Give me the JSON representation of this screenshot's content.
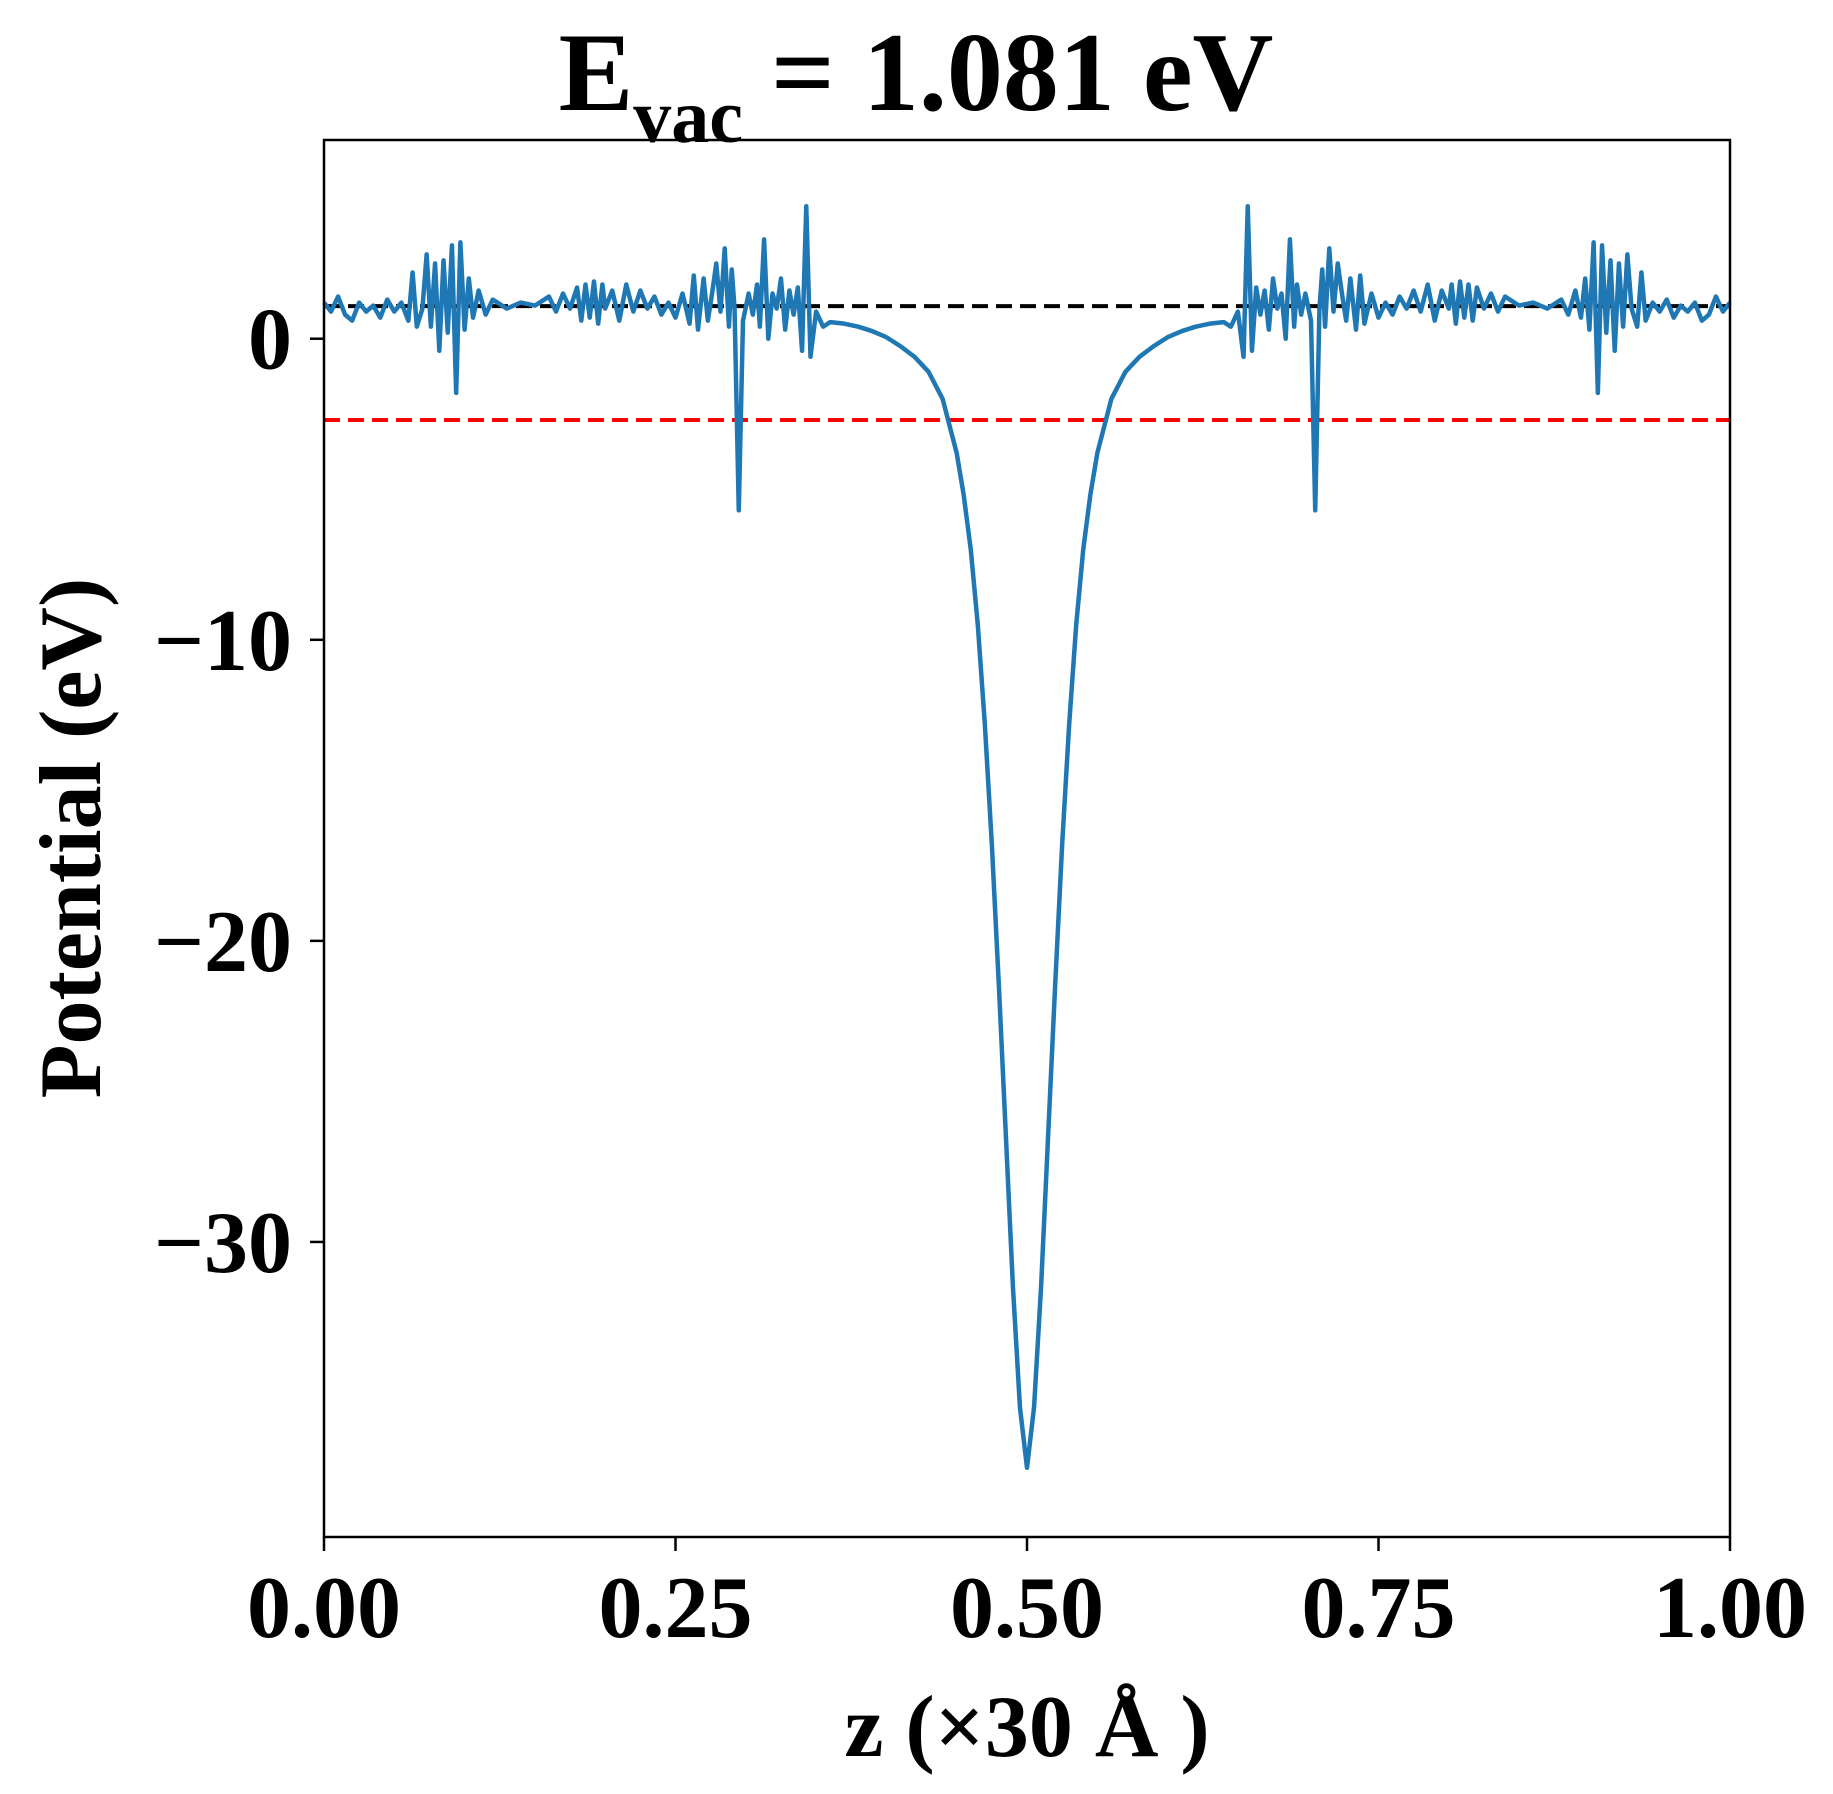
{
  "chart_data": {
    "type": "line",
    "title": {
      "main": "E",
      "subscript": "vac",
      "rest": " = 1.081 eV"
    },
    "xlabel": "z (×30 Å )",
    "ylabel": "Potential (eV)",
    "xlim": [
      0,
      1
    ],
    "ylim": [
      -39.8,
      6.6
    ],
    "xticks": [
      {
        "value": 0.0,
        "label": "0.00"
      },
      {
        "value": 0.25,
        "label": "0.25"
      },
      {
        "value": 0.5,
        "label": "0.50"
      },
      {
        "value": 0.75,
        "label": "0.75"
      },
      {
        "value": 1.0,
        "label": "1.00"
      }
    ],
    "yticks": [
      {
        "value": 0,
        "label": "0"
      },
      {
        "value": -10,
        "label": "−10"
      },
      {
        "value": -20,
        "label": "−20"
      },
      {
        "value": -30,
        "label": "−30"
      }
    ],
    "grid": false,
    "reference_lines": [
      {
        "y": 1.081,
        "color": "#000000",
        "style": "dashed",
        "x_range": [
          0.0,
          1.0
        ]
      },
      {
        "y": -2.7,
        "color": "#ff0000",
        "style": "dashed",
        "x_range": [
          0.0,
          1.0
        ]
      }
    ],
    "series": [
      {
        "color": "#1f77b4",
        "points": [
          [
            0.0,
            1.2
          ],
          [
            0.005,
            0.9
          ],
          [
            0.01,
            1.4
          ],
          [
            0.015,
            0.8
          ],
          [
            0.02,
            0.6
          ],
          [
            0.025,
            1.2
          ],
          [
            0.03,
            0.9
          ],
          [
            0.035,
            1.1
          ],
          [
            0.04,
            0.7
          ],
          [
            0.045,
            1.3
          ],
          [
            0.05,
            0.9
          ],
          [
            0.055,
            1.2
          ],
          [
            0.06,
            0.6
          ],
          [
            0.063,
            2.2
          ],
          [
            0.066,
            0.4
          ],
          [
            0.07,
            1.0
          ],
          [
            0.073,
            2.8
          ],
          [
            0.076,
            0.4
          ],
          [
            0.079,
            2.5
          ],
          [
            0.082,
            -0.4
          ],
          [
            0.085,
            2.6
          ],
          [
            0.088,
            0.2
          ],
          [
            0.091,
            3.1
          ],
          [
            0.094,
            -1.8
          ],
          [
            0.097,
            3.2
          ],
          [
            0.1,
            0.3
          ],
          [
            0.103,
            2.0
          ],
          [
            0.106,
            0.7
          ],
          [
            0.11,
            1.6
          ],
          [
            0.115,
            0.8
          ],
          [
            0.12,
            1.3
          ],
          [
            0.13,
            1.0
          ],
          [
            0.14,
            1.2
          ],
          [
            0.15,
            1.1
          ],
          [
            0.16,
            1.4
          ],
          [
            0.165,
            0.9
          ],
          [
            0.17,
            1.5
          ],
          [
            0.175,
            1.0
          ],
          [
            0.18,
            1.7
          ],
          [
            0.183,
            0.6
          ],
          [
            0.186,
            1.8
          ],
          [
            0.189,
            0.7
          ],
          [
            0.192,
            1.9
          ],
          [
            0.195,
            0.5
          ],
          [
            0.198,
            1.8
          ],
          [
            0.2,
            1.0
          ],
          [
            0.205,
            1.6
          ],
          [
            0.21,
            0.6
          ],
          [
            0.215,
            1.8
          ],
          [
            0.22,
            0.9
          ],
          [
            0.225,
            1.6
          ],
          [
            0.23,
            1.0
          ],
          [
            0.235,
            1.4
          ],
          [
            0.24,
            0.8
          ],
          [
            0.245,
            1.2
          ],
          [
            0.25,
            0.7
          ],
          [
            0.255,
            1.5
          ],
          [
            0.26,
            0.5
          ],
          [
            0.263,
            2.1
          ],
          [
            0.266,
            0.3
          ],
          [
            0.27,
            2.0
          ],
          [
            0.273,
            0.6
          ],
          [
            0.276,
            1.5
          ],
          [
            0.279,
            2.5
          ],
          [
            0.282,
            0.9
          ],
          [
            0.285,
            3.0
          ],
          [
            0.288,
            0.4
          ],
          [
            0.29,
            2.3
          ],
          [
            0.292,
            1.0
          ],
          [
            0.295,
            -5.7
          ],
          [
            0.298,
            0.6
          ],
          [
            0.302,
            1.5
          ],
          [
            0.305,
            0.8
          ],
          [
            0.308,
            1.8
          ],
          [
            0.31,
            0.4
          ],
          [
            0.313,
            3.3
          ],
          [
            0.316,
            0.0
          ],
          [
            0.319,
            1.5
          ],
          [
            0.322,
            1.0
          ],
          [
            0.325,
            2.0
          ],
          [
            0.328,
            0.3
          ],
          [
            0.331,
            1.6
          ],
          [
            0.334,
            0.8
          ],
          [
            0.337,
            1.7
          ],
          [
            0.34,
            -0.4
          ],
          [
            0.343,
            4.4
          ],
          [
            0.346,
            -0.6
          ],
          [
            0.35,
            0.9
          ],
          [
            0.355,
            0.4
          ],
          [
            0.36,
            0.55
          ],
          [
            0.37,
            0.5
          ],
          [
            0.38,
            0.4
          ],
          [
            0.39,
            0.25
          ],
          [
            0.4,
            0.05
          ],
          [
            0.41,
            -0.25
          ],
          [
            0.42,
            -0.6
          ],
          [
            0.43,
            -1.1
          ],
          [
            0.44,
            -2.0
          ],
          [
            0.445,
            -2.9
          ],
          [
            0.45,
            -3.8
          ],
          [
            0.455,
            -5.2
          ],
          [
            0.46,
            -7.0
          ],
          [
            0.465,
            -9.5
          ],
          [
            0.47,
            -12.8
          ],
          [
            0.475,
            -16.8
          ],
          [
            0.48,
            -21.5
          ],
          [
            0.485,
            -26.5
          ],
          [
            0.49,
            -31.5
          ],
          [
            0.495,
            -35.5
          ],
          [
            0.5,
            -37.5
          ],
          [
            0.505,
            -35.5
          ],
          [
            0.51,
            -31.5
          ],
          [
            0.515,
            -26.5
          ],
          [
            0.52,
            -21.5
          ],
          [
            0.525,
            -16.8
          ],
          [
            0.53,
            -12.8
          ],
          [
            0.535,
            -9.5
          ],
          [
            0.54,
            -7.0
          ],
          [
            0.545,
            -5.2
          ],
          [
            0.55,
            -3.8
          ],
          [
            0.555,
            -2.9
          ],
          [
            0.56,
            -2.0
          ],
          [
            0.57,
            -1.1
          ],
          [
            0.58,
            -0.6
          ],
          [
            0.59,
            -0.25
          ],
          [
            0.6,
            0.05
          ],
          [
            0.61,
            0.25
          ],
          [
            0.62,
            0.4
          ],
          [
            0.63,
            0.5
          ],
          [
            0.64,
            0.55
          ],
          [
            0.645,
            0.4
          ],
          [
            0.65,
            0.9
          ],
          [
            0.654,
            -0.6
          ],
          [
            0.657,
            4.4
          ],
          [
            0.66,
            -0.4
          ],
          [
            0.663,
            1.7
          ],
          [
            0.666,
            0.8
          ],
          [
            0.669,
            1.6
          ],
          [
            0.672,
            0.3
          ],
          [
            0.675,
            2.0
          ],
          [
            0.678,
            1.0
          ],
          [
            0.681,
            1.5
          ],
          [
            0.684,
            0.0
          ],
          [
            0.687,
            3.3
          ],
          [
            0.69,
            0.4
          ],
          [
            0.692,
            1.8
          ],
          [
            0.695,
            0.8
          ],
          [
            0.698,
            1.5
          ],
          [
            0.702,
            0.6
          ],
          [
            0.705,
            -5.7
          ],
          [
            0.708,
            1.0
          ],
          [
            0.71,
            2.3
          ],
          [
            0.712,
            0.4
          ],
          [
            0.715,
            3.0
          ],
          [
            0.718,
            0.9
          ],
          [
            0.721,
            2.5
          ],
          [
            0.724,
            1.5
          ],
          [
            0.727,
            0.6
          ],
          [
            0.73,
            2.0
          ],
          [
            0.734,
            0.3
          ],
          [
            0.737,
            2.1
          ],
          [
            0.74,
            0.5
          ],
          [
            0.745,
            1.5
          ],
          [
            0.75,
            0.7
          ],
          [
            0.755,
            1.2
          ],
          [
            0.76,
            0.8
          ],
          [
            0.765,
            1.4
          ],
          [
            0.77,
            1.0
          ],
          [
            0.775,
            1.6
          ],
          [
            0.78,
            0.9
          ],
          [
            0.785,
            1.8
          ],
          [
            0.79,
            0.6
          ],
          [
            0.795,
            1.6
          ],
          [
            0.8,
            1.0
          ],
          [
            0.802,
            1.8
          ],
          [
            0.805,
            0.5
          ],
          [
            0.808,
            1.9
          ],
          [
            0.811,
            0.7
          ],
          [
            0.814,
            1.8
          ],
          [
            0.817,
            0.6
          ],
          [
            0.82,
            1.7
          ],
          [
            0.825,
            1.0
          ],
          [
            0.83,
            1.5
          ],
          [
            0.835,
            0.9
          ],
          [
            0.84,
            1.4
          ],
          [
            0.85,
            1.1
          ],
          [
            0.86,
            1.2
          ],
          [
            0.87,
            1.0
          ],
          [
            0.88,
            1.3
          ],
          [
            0.885,
            0.8
          ],
          [
            0.89,
            1.6
          ],
          [
            0.894,
            0.7
          ],
          [
            0.897,
            2.0
          ],
          [
            0.9,
            0.3
          ],
          [
            0.903,
            3.2
          ],
          [
            0.906,
            -1.8
          ],
          [
            0.909,
            3.1
          ],
          [
            0.912,
            0.2
          ],
          [
            0.915,
            2.6
          ],
          [
            0.918,
            -0.4
          ],
          [
            0.921,
            2.5
          ],
          [
            0.924,
            0.4
          ],
          [
            0.927,
            2.8
          ],
          [
            0.93,
            1.0
          ],
          [
            0.934,
            0.4
          ],
          [
            0.937,
            2.2
          ],
          [
            0.94,
            0.6
          ],
          [
            0.945,
            1.2
          ],
          [
            0.95,
            0.9
          ],
          [
            0.955,
            1.3
          ],
          [
            0.96,
            0.7
          ],
          [
            0.965,
            1.1
          ],
          [
            0.97,
            0.9
          ],
          [
            0.975,
            1.2
          ],
          [
            0.98,
            0.6
          ],
          [
            0.985,
            0.8
          ],
          [
            0.99,
            1.4
          ],
          [
            0.995,
            0.9
          ],
          [
            1.0,
            1.2
          ]
        ]
      }
    ]
  }
}
